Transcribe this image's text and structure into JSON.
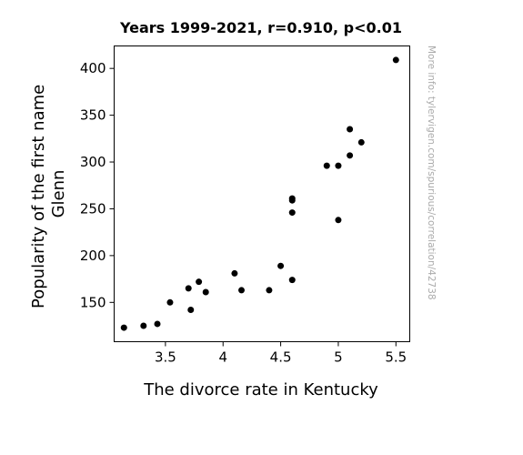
{
  "chart_data": {
    "type": "scatter",
    "title": "Years 1999-2021, r=0.910, p<0.01",
    "xlabel": "The divorce rate in Kentucky",
    "ylabel_lines": [
      "Popularity of the first name",
      "Glenn"
    ],
    "watermark": "More info: tylervigen.com/spurious/correlation/42738",
    "xlim": [
      3.055,
      5.62
    ],
    "ylim": [
      108,
      424
    ],
    "x_ticks": [
      3.5,
      4,
      4.5,
      5,
      5.5
    ],
    "x_tick_labels": [
      "3.5",
      "4",
      "4.5",
      "5",
      "5.5"
    ],
    "y_ticks": [
      150,
      200,
      250,
      300,
      350,
      400
    ],
    "y_tick_labels": [
      "150",
      "200",
      "250",
      "300",
      "350",
      "400"
    ],
    "grid": false,
    "point_color": "#000000",
    "points": [
      {
        "x": 3.14,
        "y": 123
      },
      {
        "x": 3.31,
        "y": 125
      },
      {
        "x": 3.43,
        "y": 127
      },
      {
        "x": 3.54,
        "y": 150
      },
      {
        "x": 3.7,
        "y": 165
      },
      {
        "x": 3.72,
        "y": 142
      },
      {
        "x": 3.79,
        "y": 172
      },
      {
        "x": 3.85,
        "y": 161
      },
      {
        "x": 4.1,
        "y": 181
      },
      {
        "x": 4.16,
        "y": 163
      },
      {
        "x": 4.4,
        "y": 163
      },
      {
        "x": 4.5,
        "y": 189
      },
      {
        "x": 4.6,
        "y": 174
      },
      {
        "x": 4.6,
        "y": 246
      },
      {
        "x": 4.6,
        "y": 259
      },
      {
        "x": 4.6,
        "y": 261
      },
      {
        "x": 4.9,
        "y": 296
      },
      {
        "x": 5.0,
        "y": 296
      },
      {
        "x": 5.0,
        "y": 238
      },
      {
        "x": 5.1,
        "y": 307
      },
      {
        "x": 5.1,
        "y": 335
      },
      {
        "x": 5.2,
        "y": 321
      },
      {
        "x": 5.5,
        "y": 409
      }
    ]
  }
}
